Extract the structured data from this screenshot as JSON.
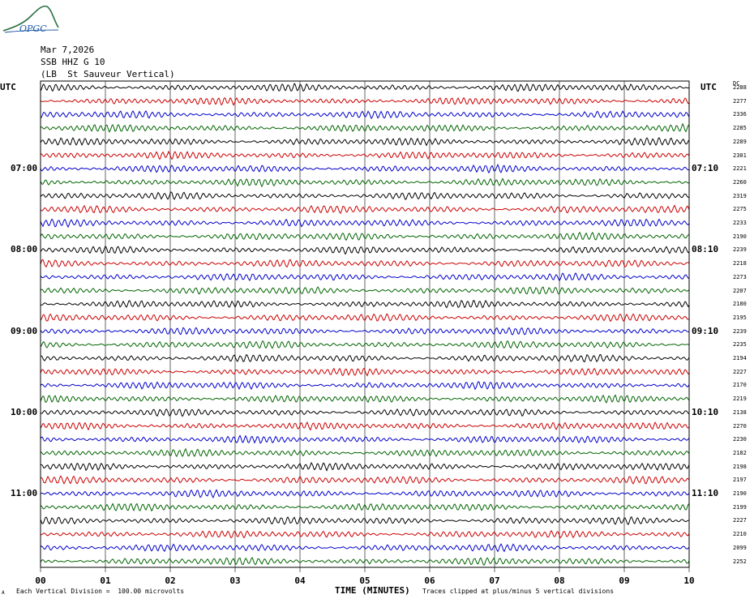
{
  "logo": {
    "text": "OPGC",
    "icon": "mountain-logo",
    "color": "#2a6f3e"
  },
  "header": {
    "date": "Mar 7,2026",
    "station": "SSB HHZ G 10",
    "location": "(LB  St Sauveur Vertical)"
  },
  "left_axis_label": "UTC",
  "right_axis_label": "UTC",
  "dc_header": "DC",
  "chart_data": {
    "type": "line",
    "title": "",
    "xlabel": "TIME (MINUTES)",
    "xlim": [
      0,
      10
    ],
    "x_ticks": [
      "00",
      "01",
      "02",
      "03",
      "04",
      "05",
      "06",
      "07",
      "08",
      "09",
      "10"
    ],
    "trace_count": 36,
    "trace_colors": [
      "#000000",
      "#cc0000",
      "#0000cc",
      "#006400"
    ],
    "left_hour_labels": [
      {
        "trace": 6,
        "text": "07:00"
      },
      {
        "trace": 12,
        "text": "08:00"
      },
      {
        "trace": 18,
        "text": "09:00"
      },
      {
        "trace": 24,
        "text": "10:00"
      },
      {
        "trace": 30,
        "text": "11:00"
      }
    ],
    "right_hour_labels": [
      {
        "trace": 6,
        "text": "07:10"
      },
      {
        "trace": 12,
        "text": "08:10"
      },
      {
        "trace": 18,
        "text": "09:10"
      },
      {
        "trace": 24,
        "text": "10:10"
      },
      {
        "trace": 30,
        "text": "11:10"
      }
    ],
    "dc_values": [
      2288,
      2277,
      2336,
      2285,
      2289,
      2301,
      2221,
      2260,
      2319,
      2275,
      2233,
      2190,
      2239,
      2218,
      2273,
      2207,
      2180,
      2195,
      2239,
      2235,
      2194,
      2227,
      2170,
      2219,
      2138,
      2270,
      2230,
      2182,
      2198,
      2197,
      2190,
      2199,
      2227,
      2210,
      2099,
      2252
    ]
  },
  "footer": {
    "scale_note": "Each Vertical Division =  100.00 microvolts",
    "clip_note": "Traces clipped at plus/minus 5 vertical divisions",
    "corner_mark": "A"
  }
}
